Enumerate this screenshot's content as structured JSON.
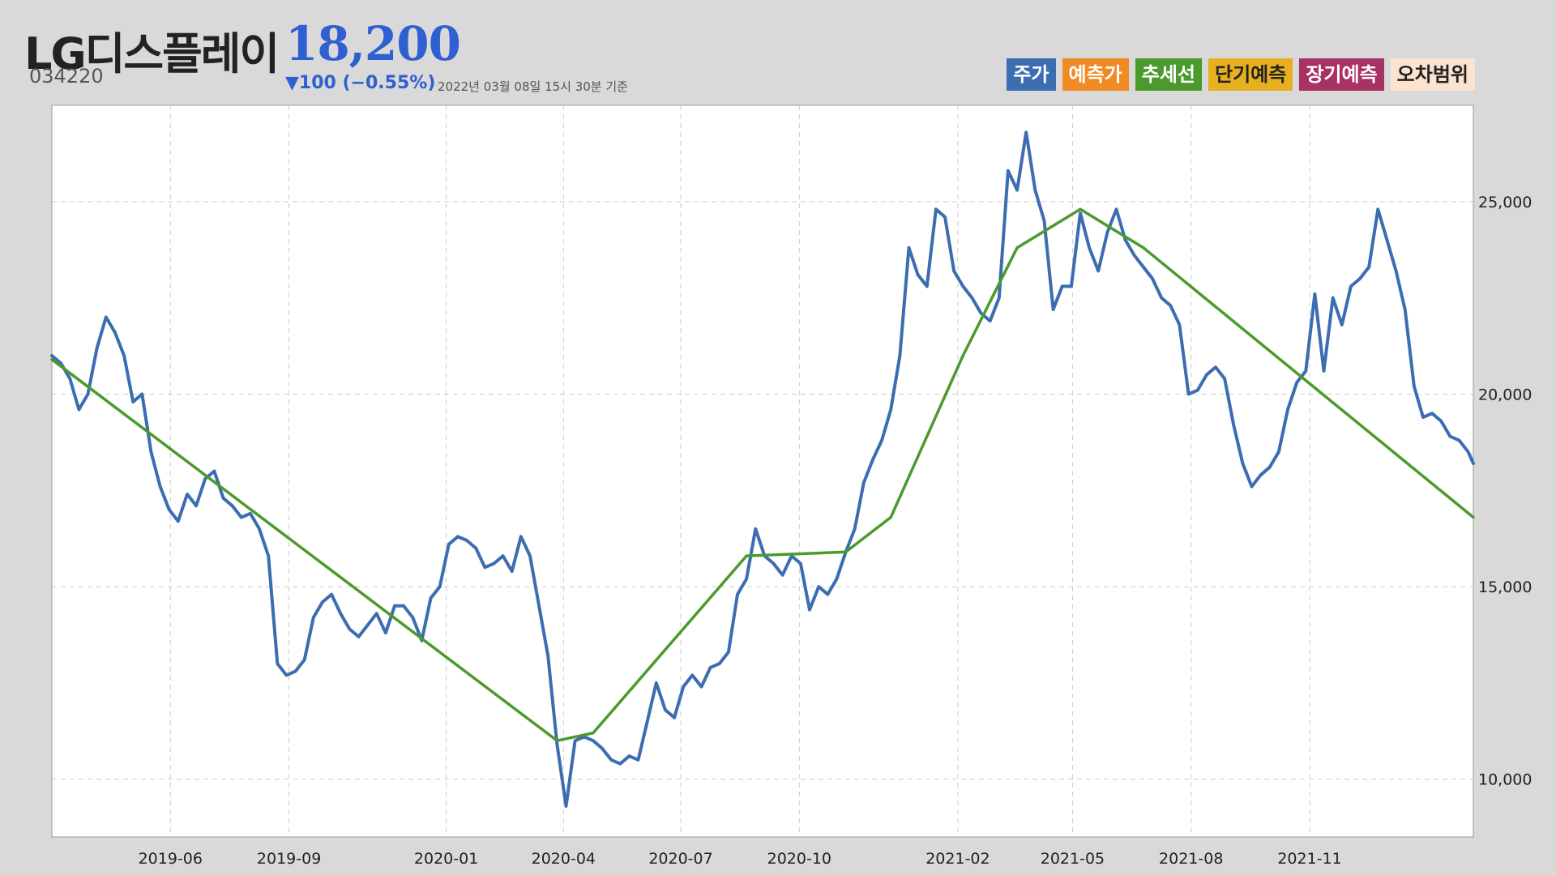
{
  "header": {
    "company": "LG디스플레이",
    "price": "18,200",
    "code": "034220",
    "change": "▼100 (−0.55%)",
    "timestamp": "2022년 03월 08일 15시 30분 기준"
  },
  "legend": [
    {
      "label": "주가",
      "bg": "#3b6db0",
      "fg": "#ffffff"
    },
    {
      "label": "예측가",
      "bg": "#f08a24",
      "fg": "#ffffff"
    },
    {
      "label": "추세선",
      "bg": "#4a9a2c",
      "fg": "#ffffff"
    },
    {
      "label": "단기예측",
      "bg": "#e8b020",
      "fg": "#222222"
    },
    {
      "label": "장기예측",
      "bg": "#a83263",
      "fg": "#ffffff"
    },
    {
      "label": "오차범위",
      "bg": "#fbe3cf",
      "fg": "#222222"
    }
  ],
  "chart_data": {
    "type": "line",
    "x_ticks": [
      "2019-06",
      "2019-09",
      "2020-01",
      "2020-04",
      "2020-07",
      "2020-10",
      "2021-02",
      "2021-05",
      "2021-08",
      "2021-11"
    ],
    "y_ticks": [
      10000,
      15000,
      20000,
      25000
    ],
    "y_tick_labels": [
      "10,000",
      "15,000",
      "20,000",
      "25,000"
    ],
    "ylim": [
      8500,
      27500
    ],
    "xlim": [
      "2019-03-01",
      "2022-03-08"
    ],
    "y_axis_position": "right",
    "grid": true,
    "colors": {
      "price": "#3b6db0",
      "trend": "#4a9a2c"
    },
    "series": [
      {
        "key": "price",
        "x": [
          "2019-03-01",
          "2019-03-08",
          "2019-03-15",
          "2019-03-22",
          "2019-03-29",
          "2019-04-05",
          "2019-04-12",
          "2019-04-19",
          "2019-04-26",
          "2019-05-03",
          "2019-05-10",
          "2019-05-17",
          "2019-05-24",
          "2019-05-31",
          "2019-06-07",
          "2019-06-14",
          "2019-06-21",
          "2019-06-28",
          "2019-07-05",
          "2019-07-12",
          "2019-07-19",
          "2019-07-26",
          "2019-08-02",
          "2019-08-09",
          "2019-08-16",
          "2019-08-23",
          "2019-08-30",
          "2019-09-06",
          "2019-09-13",
          "2019-09-20",
          "2019-09-27",
          "2019-10-04",
          "2019-10-11",
          "2019-10-18",
          "2019-10-25",
          "2019-11-01",
          "2019-11-08",
          "2019-11-15",
          "2019-11-22",
          "2019-11-29",
          "2019-12-06",
          "2019-12-13",
          "2019-12-20",
          "2019-12-27",
          "2020-01-03",
          "2020-01-10",
          "2020-01-17",
          "2020-01-24",
          "2020-01-31",
          "2020-02-07",
          "2020-02-14",
          "2020-02-21",
          "2020-02-28",
          "2020-03-06",
          "2020-03-13",
          "2020-03-20",
          "2020-03-27",
          "2020-04-03",
          "2020-04-10",
          "2020-04-17",
          "2020-04-24",
          "2020-05-01",
          "2020-05-08",
          "2020-05-15",
          "2020-05-22",
          "2020-05-29",
          "2020-06-05",
          "2020-06-12",
          "2020-06-19",
          "2020-06-26",
          "2020-07-03",
          "2020-07-10",
          "2020-07-17",
          "2020-07-24",
          "2020-07-31",
          "2020-08-07",
          "2020-08-14",
          "2020-08-21",
          "2020-08-28",
          "2020-09-04",
          "2020-09-11",
          "2020-09-18",
          "2020-09-25",
          "2020-10-02",
          "2020-10-09",
          "2020-10-16",
          "2020-10-23",
          "2020-10-30",
          "2020-11-06",
          "2020-11-13",
          "2020-11-20",
          "2020-11-27",
          "2020-12-04",
          "2020-12-11",
          "2020-12-18",
          "2020-12-25",
          "2021-01-01",
          "2021-01-08",
          "2021-01-15",
          "2021-01-22",
          "2021-01-29",
          "2021-02-05",
          "2021-02-12",
          "2021-02-19",
          "2021-02-26",
          "2021-03-05",
          "2021-03-12",
          "2021-03-19",
          "2021-03-26",
          "2021-04-02",
          "2021-04-09",
          "2021-04-16",
          "2021-04-23",
          "2021-04-30",
          "2021-05-07",
          "2021-05-14",
          "2021-05-21",
          "2021-05-28",
          "2021-06-04",
          "2021-06-11",
          "2021-06-18",
          "2021-06-25",
          "2021-07-02",
          "2021-07-09",
          "2021-07-16",
          "2021-07-23",
          "2021-07-30",
          "2021-08-06",
          "2021-08-13",
          "2021-08-20",
          "2021-08-27",
          "2021-09-03",
          "2021-09-10",
          "2021-09-17",
          "2021-09-24",
          "2021-10-01",
          "2021-10-08",
          "2021-10-15",
          "2021-10-22",
          "2021-10-29",
          "2021-11-05",
          "2021-11-12",
          "2021-11-19",
          "2021-11-26",
          "2021-12-03",
          "2021-12-10",
          "2021-12-17",
          "2021-12-24",
          "2021-12-31",
          "2022-01-07",
          "2022-01-14",
          "2022-01-21",
          "2022-01-28",
          "2022-02-04",
          "2022-02-11",
          "2022-02-18",
          "2022-02-25",
          "2022-03-04",
          "2022-03-08"
        ],
        "y": [
          21000,
          20800,
          20400,
          19600,
          20000,
          21200,
          22000,
          21600,
          21000,
          19800,
          20000,
          18500,
          17600,
          17000,
          16700,
          17400,
          17100,
          17800,
          18000,
          17300,
          17100,
          16800,
          16900,
          16500,
          15800,
          13000,
          12700,
          12800,
          13100,
          14200,
          14600,
          14800,
          14300,
          13900,
          13700,
          14000,
          14300,
          13800,
          14500,
          14500,
          14200,
          13600,
          14700,
          15000,
          16100,
          16300,
          16200,
          16000,
          15500,
          15600,
          15800,
          15400,
          16300,
          15800,
          14500,
          13200,
          10900,
          9300,
          11000,
          11100,
          11000,
          10800,
          10500,
          10400,
          10600,
          10500,
          11500,
          12500,
          11800,
          11600,
          12400,
          12700,
          12400,
          12900,
          13000,
          13300,
          14800,
          15200,
          16500,
          15800,
          15600,
          15300,
          15800,
          15600,
          14400,
          15000,
          14800,
          15200,
          15900,
          16500,
          17700,
          18300,
          18800,
          19600,
          21000,
          23800,
          23100,
          22800,
          24800,
          24600,
          23200,
          22800,
          22500,
          22100,
          21900,
          22500,
          25800,
          25300,
          26800,
          25300,
          24500,
          22200,
          22800,
          22800,
          24700,
          23800,
          23200,
          24200,
          24800,
          24000,
          23600,
          23300,
          23000,
          22500,
          22300,
          21800,
          20000,
          20100,
          20500,
          20700,
          20400,
          19200,
          18200,
          17600,
          17900,
          18100,
          18500,
          19600,
          20300,
          20600,
          22600,
          20600,
          22500,
          21800,
          22800,
          23000,
          23300,
          24800,
          24000,
          23200,
          22200,
          20200,
          19400,
          19500,
          19300,
          18900,
          18800,
          18500,
          18200
        ]
      },
      {
        "key": "trend",
        "x": [
          "2019-03-01",
          "2020-03-27",
          "2020-04-24",
          "2020-08-21",
          "2020-11-06",
          "2020-12-11",
          "2021-02-05",
          "2021-03-19",
          "2021-05-07",
          "2021-06-25",
          "2022-03-08"
        ],
        "y": [
          20900,
          11000,
          11200,
          15800,
          15900,
          16800,
          21000,
          23800,
          24800,
          23800,
          16800
        ]
      }
    ]
  }
}
